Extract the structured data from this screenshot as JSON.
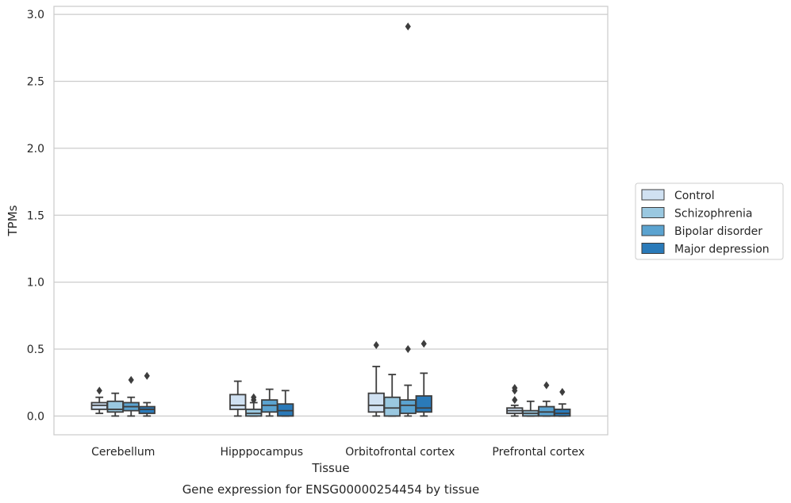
{
  "chart_data": {
    "type": "box",
    "categories": [
      "Cerebellum",
      "Hipppocampus",
      "Orbitofrontal cortex",
      "Prefrontal cortex"
    ],
    "xlabel": "Tissue",
    "ylabel": "TPMs",
    "caption": "Gene expression for ENSG00000254454 by tissue",
    "ylim": [
      -0.14,
      3.06
    ],
    "yticks": [
      0.0,
      0.5,
      1.0,
      1.5,
      2.0,
      2.5,
      3.0
    ],
    "ytick_labels": [
      "0.0",
      "0.5",
      "1.0",
      "1.5",
      "2.0",
      "2.5",
      "3.0"
    ],
    "grid": "horizontal",
    "legend_position": "right",
    "series": [
      {
        "name": "Control",
        "color": "#d0e1f2",
        "boxes": [
          {
            "whisker_low": 0.02,
            "q1": 0.05,
            "median": 0.08,
            "q3": 0.1,
            "whisker_high": 0.14,
            "outliers": [
              0.19
            ]
          },
          {
            "whisker_low": 0.0,
            "q1": 0.05,
            "median": 0.08,
            "q3": 0.16,
            "whisker_high": 0.26,
            "outliers": []
          },
          {
            "whisker_low": 0.0,
            "q1": 0.03,
            "median": 0.08,
            "q3": 0.17,
            "whisker_high": 0.37,
            "outliers": [
              0.53
            ]
          },
          {
            "whisker_low": 0.0,
            "q1": 0.02,
            "median": 0.04,
            "q3": 0.06,
            "whisker_high": 0.08,
            "outliers": [
              0.12,
              0.19,
              0.21
            ]
          }
        ]
      },
      {
        "name": "Schizophrenia",
        "color": "#9ac8e0",
        "boxes": [
          {
            "whisker_low": 0.0,
            "q1": 0.03,
            "median": 0.05,
            "q3": 0.11,
            "whisker_high": 0.17,
            "outliers": []
          },
          {
            "whisker_low": 0.0,
            "q1": 0.0,
            "median": 0.02,
            "q3": 0.05,
            "whisker_high": 0.1,
            "outliers": [
              0.12,
              0.14
            ]
          },
          {
            "whisker_low": 0.0,
            "q1": 0.0,
            "median": 0.06,
            "q3": 0.14,
            "whisker_high": 0.31,
            "outliers": []
          },
          {
            "whisker_low": 0.0,
            "q1": 0.0,
            "median": 0.02,
            "q3": 0.04,
            "whisker_high": 0.11,
            "outliers": []
          }
        ]
      },
      {
        "name": "Bipolar disorder",
        "color": "#5ba3d0",
        "boxes": [
          {
            "whisker_low": 0.0,
            "q1": 0.04,
            "median": 0.07,
            "q3": 0.1,
            "whisker_high": 0.14,
            "outliers": [
              0.27
            ]
          },
          {
            "whisker_low": 0.0,
            "q1": 0.03,
            "median": 0.08,
            "q3": 0.12,
            "whisker_high": 0.2,
            "outliers": []
          },
          {
            "whisker_low": 0.0,
            "q1": 0.02,
            "median": 0.08,
            "q3": 0.12,
            "whisker_high": 0.23,
            "outliers": [
              0.5,
              2.91
            ]
          },
          {
            "whisker_low": 0.0,
            "q1": 0.0,
            "median": 0.03,
            "q3": 0.07,
            "whisker_high": 0.11,
            "outliers": [
              0.23
            ]
          }
        ]
      },
      {
        "name": "Major depression",
        "color": "#2a7ab9",
        "boxes": [
          {
            "whisker_low": 0.0,
            "q1": 0.02,
            "median": 0.05,
            "q3": 0.07,
            "whisker_high": 0.1,
            "outliers": [
              0.3
            ]
          },
          {
            "whisker_low": 0.0,
            "q1": 0.0,
            "median": 0.04,
            "q3": 0.09,
            "whisker_high": 0.19,
            "outliers": []
          },
          {
            "whisker_low": 0.0,
            "q1": 0.03,
            "median": 0.06,
            "q3": 0.15,
            "whisker_high": 0.32,
            "outliers": [
              0.54
            ]
          },
          {
            "whisker_low": 0.0,
            "q1": 0.0,
            "median": 0.02,
            "q3": 0.05,
            "whisker_high": 0.09,
            "outliers": [
              0.18
            ]
          }
        ]
      }
    ]
  }
}
